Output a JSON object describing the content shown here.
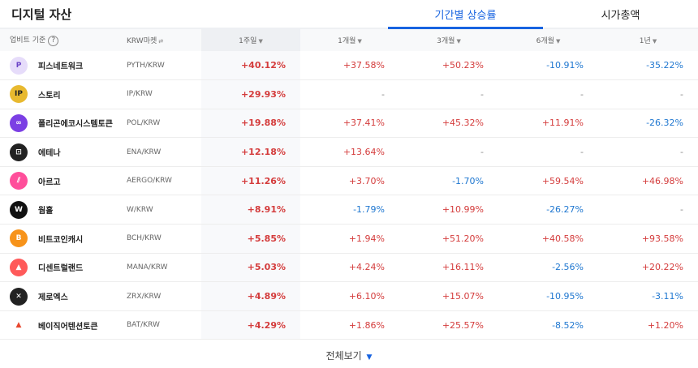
{
  "header": {
    "title": "디지털 자산"
  },
  "tabs": [
    {
      "label": "기간별 상승률",
      "active": true
    },
    {
      "label": "시가총액",
      "active": false
    }
  ],
  "columns": {
    "basis": "업비트 기준",
    "help": "?",
    "market": "KRW마켓",
    "market_icon": "⇄",
    "periods": [
      "1주일",
      "1개월",
      "3개월",
      "6개월",
      "1년"
    ],
    "sort_icon": "▼"
  },
  "rows": [
    {
      "name": "피스네트워크",
      "pair": "PYTH/KRW",
      "icon": "P",
      "icon_bg": "#e6dcfa",
      "icon_fg": "#6b43c7",
      "values": [
        "+40.12%",
        "+37.58%",
        "+50.23%",
        "-10.91%",
        "-35.22%"
      ]
    },
    {
      "name": "스토리",
      "pair": "IP/KRW",
      "icon": "IP",
      "icon_bg": "#e8b92f",
      "icon_fg": "#222",
      "values": [
        "+29.93%",
        "-",
        "-",
        "-",
        "-"
      ]
    },
    {
      "name": "폴리곤에코시스템토큰",
      "pair": "POL/KRW",
      "icon": "∞",
      "icon_bg": "#7b3fe4",
      "icon_fg": "#fff",
      "values": [
        "+19.88%",
        "+37.41%",
        "+45.32%",
        "+11.91%",
        "-26.32%"
      ]
    },
    {
      "name": "에테나",
      "pair": "ENA/KRW",
      "icon": "⊡",
      "icon_bg": "#222",
      "icon_fg": "#fff",
      "values": [
        "+12.18%",
        "+13.64%",
        "-",
        "-",
        "-"
      ]
    },
    {
      "name": "아르고",
      "pair": "AERGO/KRW",
      "icon": "⫽",
      "icon_bg": "#ff4f9b",
      "icon_fg": "#fff",
      "values": [
        "+11.26%",
        "+3.70%",
        "-1.70%",
        "+59.54%",
        "+46.98%"
      ]
    },
    {
      "name": "웜홀",
      "pair": "W/KRW",
      "icon": "W",
      "icon_bg": "#111",
      "icon_fg": "#fff",
      "values": [
        "+8.91%",
        "-1.79%",
        "+10.99%",
        "-26.27%",
        "-"
      ]
    },
    {
      "name": "비트코인캐시",
      "pair": "BCH/KRW",
      "icon": "B",
      "icon_bg": "#f7931a",
      "icon_fg": "#fff",
      "values": [
        "+5.85%",
        "+1.94%",
        "+51.20%",
        "+40.58%",
        "+93.58%"
      ]
    },
    {
      "name": "디센트럴랜드",
      "pair": "MANA/KRW",
      "icon": "▲",
      "icon_bg": "#ff5a5a",
      "icon_fg": "#fff",
      "values": [
        "+5.03%",
        "+4.24%",
        "+16.11%",
        "-2.56%",
        "+20.22%"
      ]
    },
    {
      "name": "제로엑스",
      "pair": "ZRX/KRW",
      "icon": "✕",
      "icon_bg": "#222",
      "icon_fg": "#fff",
      "values": [
        "+4.89%",
        "+6.10%",
        "+15.07%",
        "-10.95%",
        "-3.11%"
      ]
    },
    {
      "name": "베이직어텐션토큰",
      "pair": "BAT/KRW",
      "icon": "▲",
      "icon_bg": "#fff",
      "icon_fg": "#e8472f",
      "values": [
        "+4.29%",
        "+1.86%",
        "+25.57%",
        "-8.52%",
        "+1.20%"
      ]
    }
  ],
  "footer": {
    "label": "전체보기",
    "icon": "▼"
  },
  "colors": {
    "up": "#d43c3c",
    "down": "#1f77d0",
    "accent": "#1763e0"
  }
}
